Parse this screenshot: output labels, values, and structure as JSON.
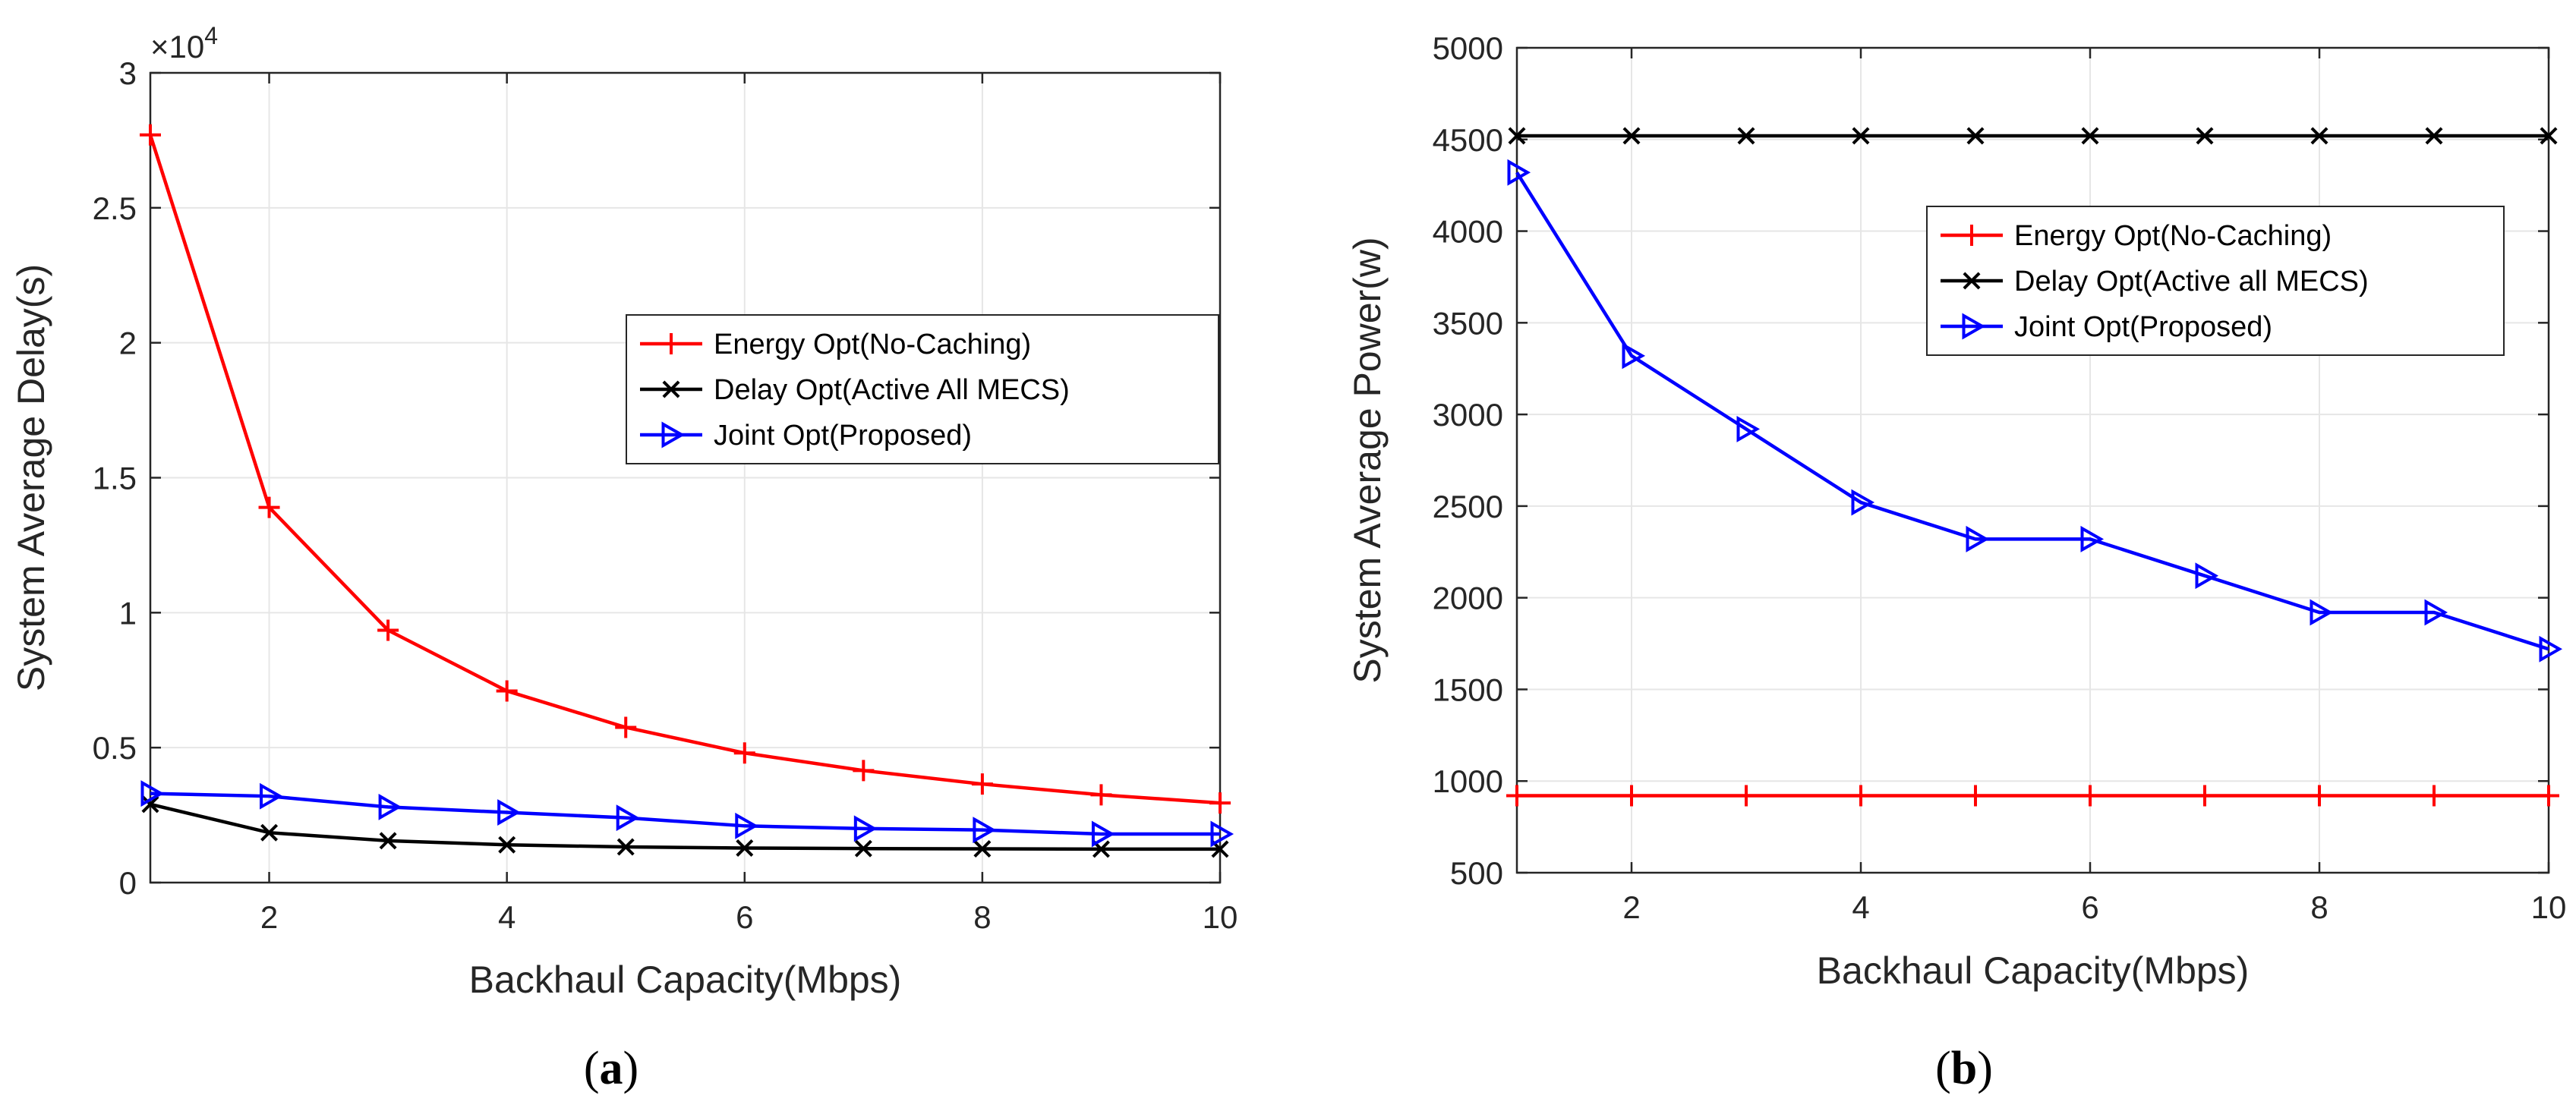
{
  "chart_data": [
    {
      "type": "line",
      "panel_label": "a",
      "xlabel": "Backhaul Capacity(Mbps)",
      "ylabel": "System Average Delay(s)",
      "y_exponent_label": "×10",
      "y_exponent_power": "4",
      "xlim": [
        1,
        10
      ],
      "ylim": [
        0,
        3
      ],
      "xticks": [
        "2",
        "4",
        "6",
        "8",
        "10"
      ],
      "xtick_values": [
        2,
        4,
        6,
        8,
        10
      ],
      "yticks": [
        "0",
        "0.5",
        "1",
        "1.5",
        "2",
        "2.5",
        "3"
      ],
      "ytick_values": [
        0,
        0.5,
        1,
        1.5,
        2,
        2.5,
        3
      ],
      "grid": true,
      "legend_position": "center-right",
      "x": [
        1,
        2,
        3,
        4,
        5,
        6,
        7,
        8,
        9,
        10
      ],
      "series": [
        {
          "name": "Energy Opt(No-Caching)",
          "color": "#ff0000",
          "marker": "plus",
          "values": [
            2.77,
            1.39,
            0.935,
            0.71,
            0.575,
            0.48,
            0.415,
            0.365,
            0.325,
            0.295
          ]
        },
        {
          "name": "Delay Opt(Active All MECS)",
          "color": "#000000",
          "marker": "cross",
          "values": [
            0.29,
            0.185,
            0.155,
            0.14,
            0.132,
            0.128,
            0.126,
            0.125,
            0.124,
            0.124
          ]
        },
        {
          "name": "Joint Opt(Proposed)",
          "color": "#0000ff",
          "marker": "triangle-right",
          "values": [
            0.33,
            0.32,
            0.28,
            0.26,
            0.24,
            0.21,
            0.2,
            0.195,
            0.18,
            0.18
          ]
        }
      ]
    },
    {
      "type": "line",
      "panel_label": "b",
      "xlabel": "Backhaul Capacity(Mbps)",
      "ylabel": "System Average Power(w)",
      "xlim": [
        1,
        10
      ],
      "ylim": [
        500,
        5000
      ],
      "xticks": [
        "2",
        "4",
        "6",
        "8",
        "10"
      ],
      "xtick_values": [
        2,
        4,
        6,
        8,
        10
      ],
      "yticks": [
        "500",
        "1000",
        "1500",
        "2000",
        "2500",
        "3000",
        "3500",
        "4000",
        "4500",
        "5000"
      ],
      "ytick_values": [
        500,
        1000,
        1500,
        2000,
        2500,
        3000,
        3500,
        4000,
        4500,
        5000
      ],
      "grid": true,
      "legend_position": "upper-right",
      "x": [
        1,
        2,
        3,
        4,
        5,
        6,
        7,
        8,
        9,
        10
      ],
      "series": [
        {
          "name": "Energy Opt(No-Caching)",
          "color": "#ff0000",
          "marker": "plus",
          "values": [
            920,
            920,
            920,
            920,
            920,
            920,
            920,
            920,
            920,
            920
          ]
        },
        {
          "name": "Delay Opt(Active all MECS)",
          "color": "#000000",
          "marker": "cross",
          "values": [
            4520,
            4520,
            4520,
            4520,
            4520,
            4520,
            4520,
            4520,
            4520,
            4520
          ]
        },
        {
          "name": "Joint Opt(Proposed)",
          "color": "#0000ff",
          "marker": "triangle-right",
          "values": [
            4320,
            3320,
            2920,
            2520,
            2320,
            2320,
            2120,
            1920,
            1920,
            1720
          ]
        }
      ]
    }
  ]
}
